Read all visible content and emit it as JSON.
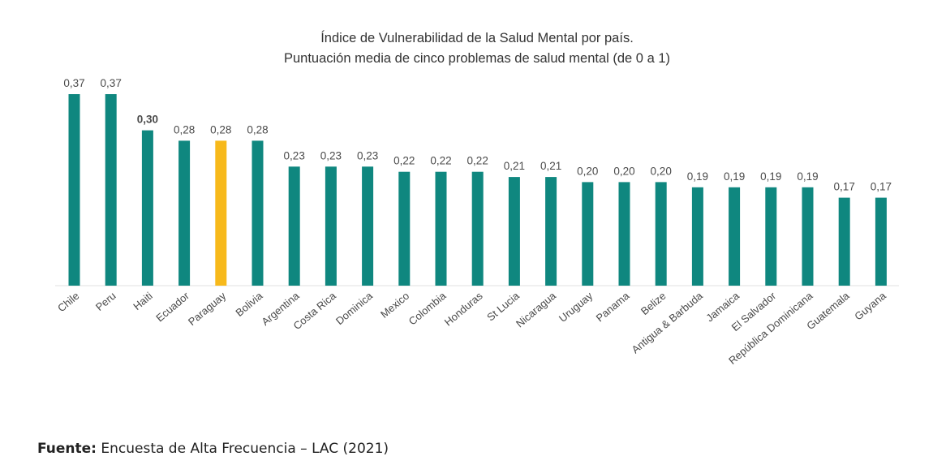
{
  "chart_data": {
    "type": "bar",
    "title": "Índice de Vulnerabilidad de la Salud Mental por país.",
    "subtitle": "Puntuación media de cinco problemas de salud mental (de 0 a 1)",
    "categories": [
      "Chile",
      "Peru",
      "Haiti",
      "Ecuador",
      "Paraguay",
      "Bolivia",
      "Argentina",
      "Costa Rica",
      "Dominica",
      "Mexico",
      "Colombia",
      "Honduras",
      "St Lucia",
      "Nicaragua",
      "Uruguay",
      "Panama",
      "Belize",
      "Antigua & Barbuda",
      "Jamaica",
      "El Salvador",
      "República Dominicana",
      "Guatemala",
      "Guyana"
    ],
    "values": [
      0.37,
      0.37,
      0.3,
      0.28,
      0.28,
      0.28,
      0.23,
      0.23,
      0.23,
      0.22,
      0.22,
      0.22,
      0.21,
      0.21,
      0.2,
      0.2,
      0.2,
      0.19,
      0.19,
      0.19,
      0.19,
      0.17,
      0.17
    ],
    "value_labels": [
      "0,37",
      "0,37",
      "0,30",
      "0,28",
      "0,28",
      "0,28",
      "0,23",
      "0,23",
      "0,23",
      "0,22",
      "0,22",
      "0,22",
      "0,21",
      "0,21",
      "0,20",
      "0,20",
      "0,20",
      "0,19",
      "0,19",
      "0,19",
      "0,19",
      "0,17",
      "0,17"
    ],
    "highlight": "Paraguay",
    "bold_labels": [
      "Haiti"
    ],
    "xlabel": "",
    "ylabel": "",
    "ylim": [
      0,
      0.37
    ],
    "grid": false,
    "colors": {
      "bar": "#0f877f",
      "highlight": "#f7b91b",
      "highlight_label": "#e8891c",
      "label": "#4a4a4a"
    }
  },
  "source": {
    "label": "Fuente:",
    "text": " Encuesta de Alta Frecuencia – LAC (2021)"
  }
}
